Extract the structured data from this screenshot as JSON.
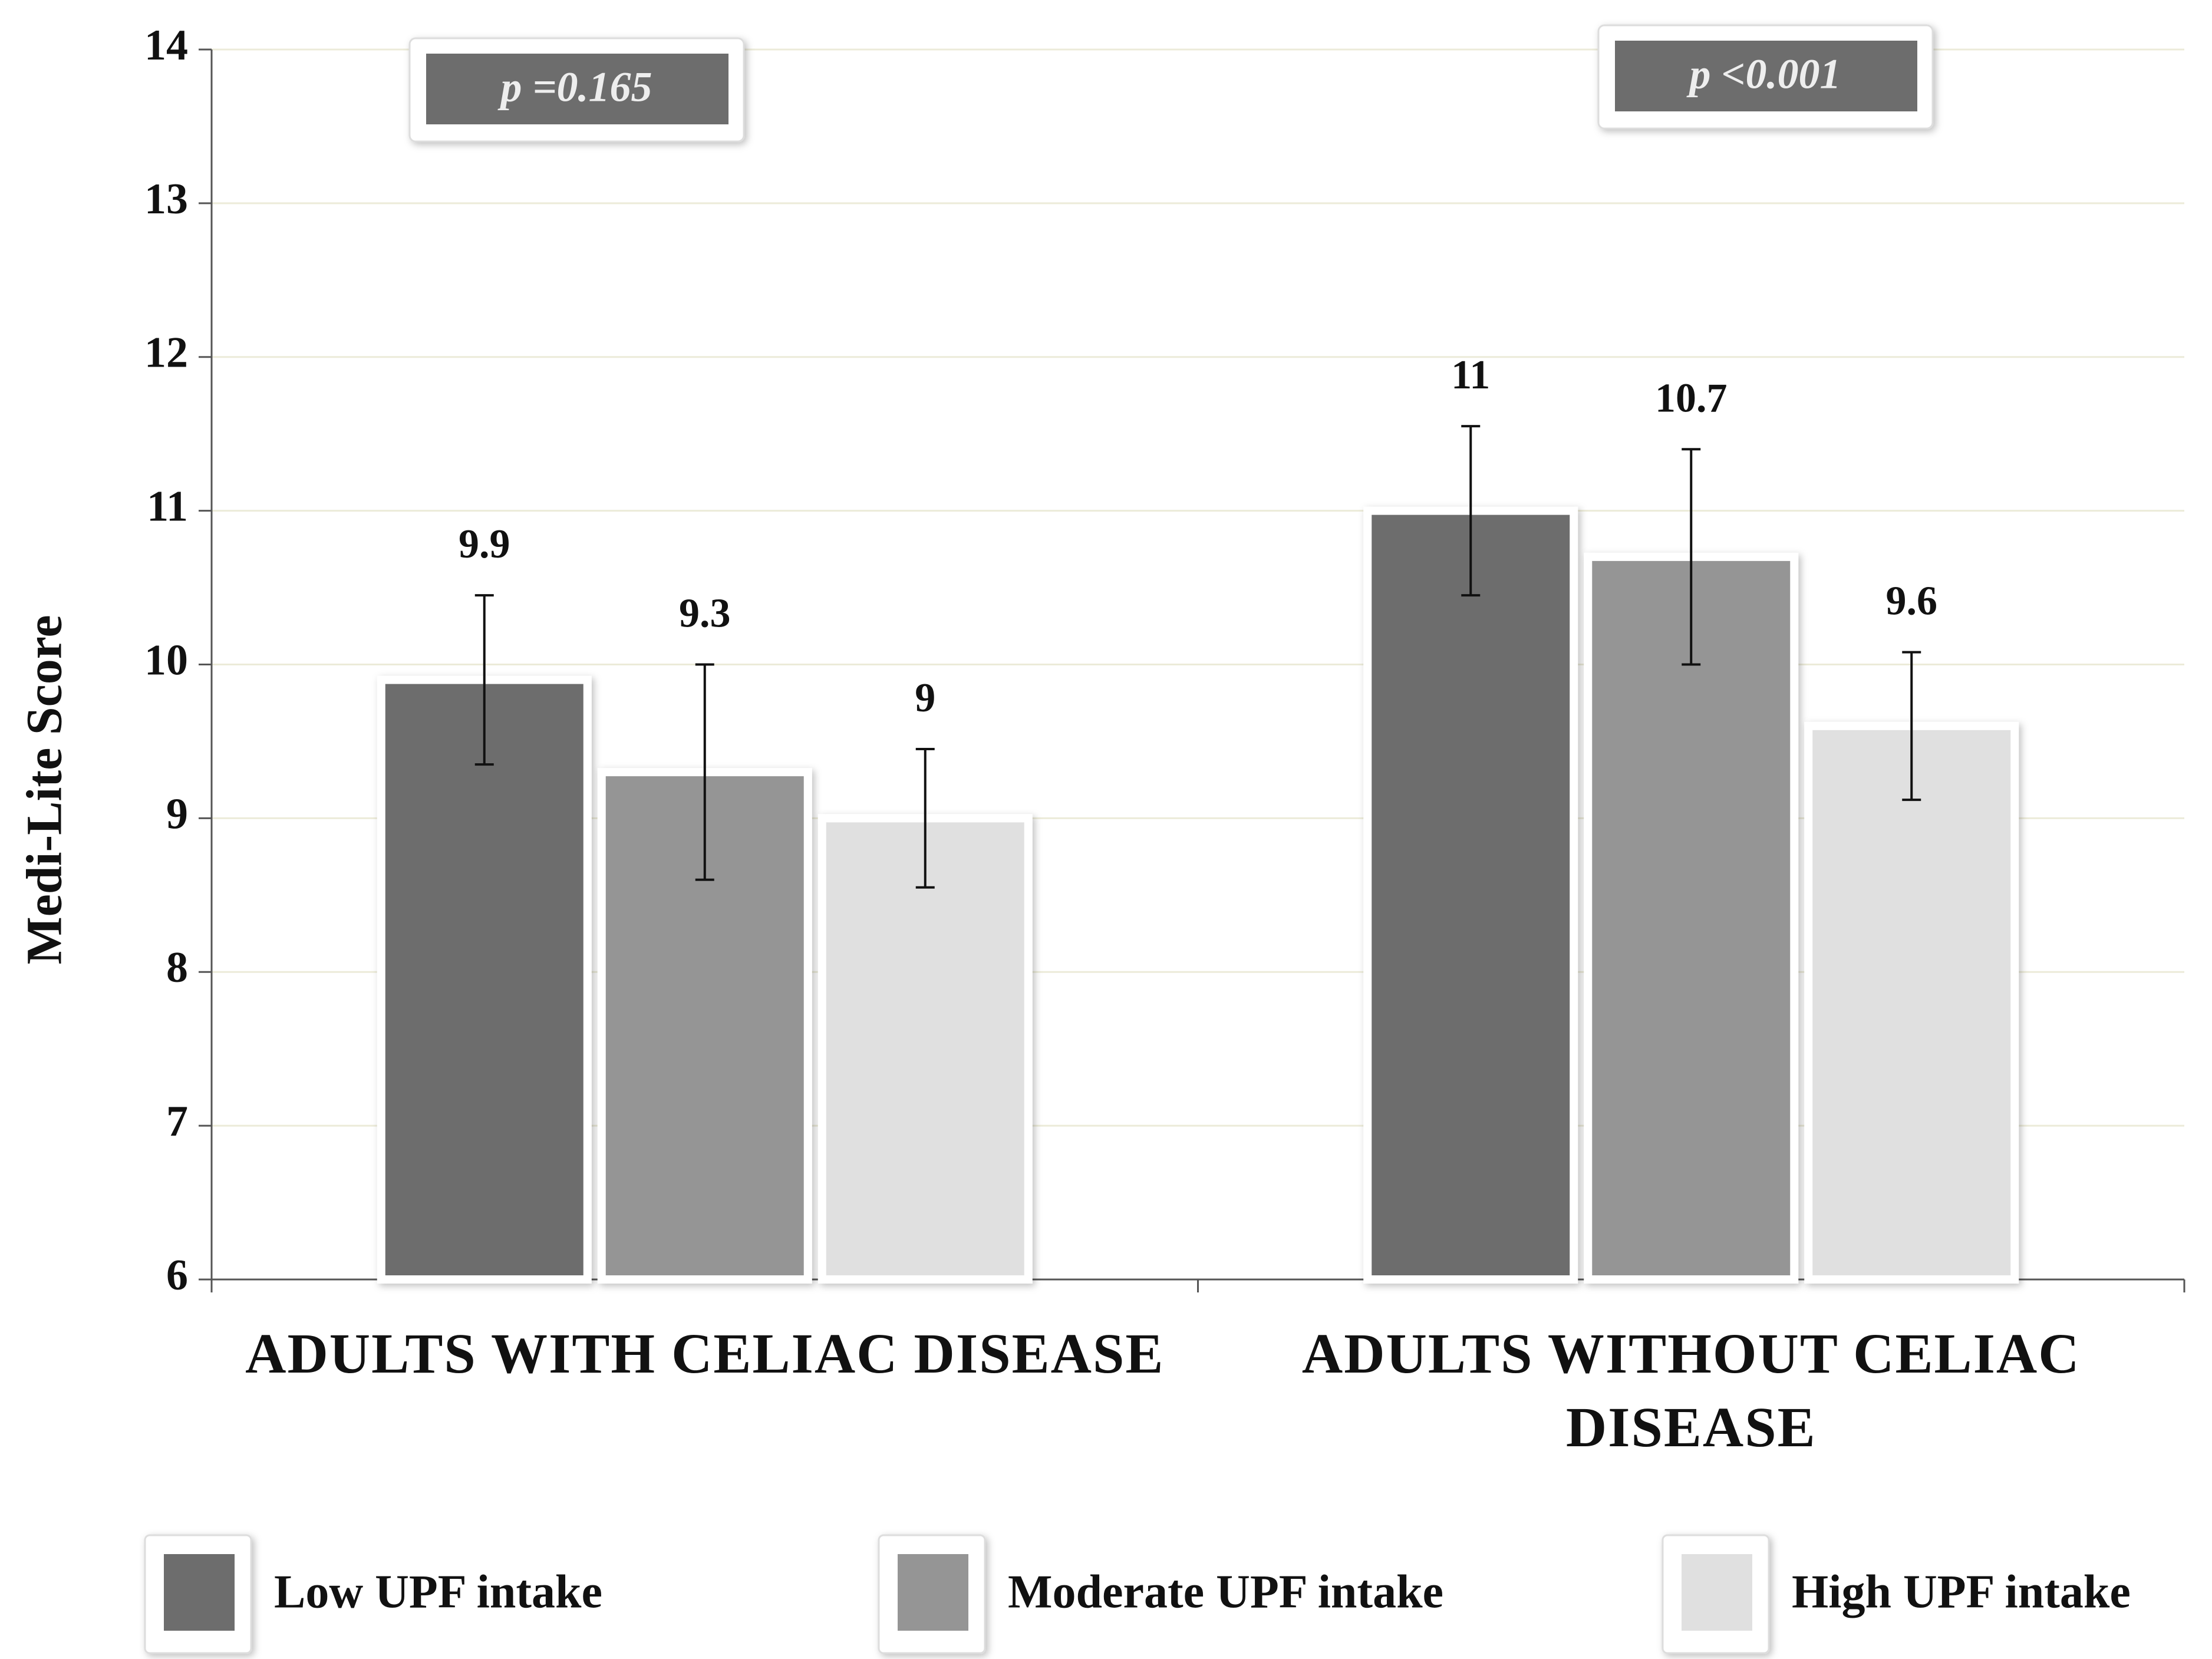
{
  "chart_data": {
    "type": "bar",
    "y_label": "Medi-Lite Score",
    "categories": [
      "ADULTS WITH CELIAC DISEASE",
      "ADULTS WITHOUT CELIAC DISEASE"
    ],
    "series": [
      {
        "name": "Low UPF intake",
        "color": "#6d6d6d",
        "values": [
          9.9,
          11
        ],
        "errors": [
          0.55,
          0.55
        ]
      },
      {
        "name": "Moderate UPF intake",
        "color": "#959595",
        "values": [
          9.3,
          10.7
        ],
        "errors": [
          0.7,
          0.7
        ]
      },
      {
        "name": "High UPF intake",
        "color": "#e0e0e0",
        "values": [
          9,
          9.6
        ],
        "errors": [
          0.45,
          0.48
        ]
      }
    ],
    "annotations": [
      "p =0.165",
      "p <0.001"
    ],
    "ylim": [
      6,
      14
    ],
    "yticks": [
      6,
      7,
      8,
      9,
      10,
      11,
      12,
      13,
      14
    ],
    "grid": true,
    "legend": "bottom"
  }
}
